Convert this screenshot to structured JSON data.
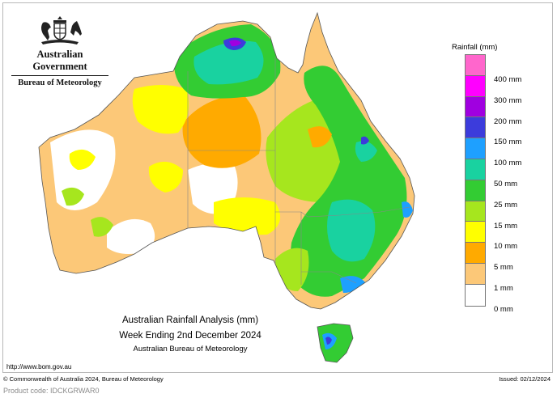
{
  "header": {
    "government": "Australian Government",
    "bureau": "Bureau of Meteorology"
  },
  "legend": {
    "title": "Rainfall (mm)",
    "items": [
      {
        "label": "400 mm",
        "color": "#ff66cc"
      },
      {
        "label": "300 mm",
        "color": "#ff00ff"
      },
      {
        "label": "200 mm",
        "color": "#a000e0"
      },
      {
        "label": "150 mm",
        "color": "#3c3cdc"
      },
      {
        "label": "100 mm",
        "color": "#1ea0ff"
      },
      {
        "label": "50 mm",
        "color": "#19d2a0"
      },
      {
        "label": "25 mm",
        "color": "#33cc33"
      },
      {
        "label": "15 mm",
        "color": "#a6e61e"
      },
      {
        "label": "10 mm",
        "color": "#ffff00"
      },
      {
        "label": "5 mm",
        "color": "#ffaa00"
      },
      {
        "label": "1 mm",
        "color": "#fcc878"
      },
      {
        "label": "0 mm",
        "color": "#ffffff"
      }
    ]
  },
  "title": {
    "line1": "Australian Rainfall Analysis (mm)",
    "line2": "Week Ending 2nd December 2024",
    "line3": "Australian Bureau of Meteorology"
  },
  "footer": {
    "url": "http://www.bom.gov.au",
    "copyright": "© Commonwealth of Australia 2024, Bureau of Meteorology",
    "issued": "Issued: 02/12/2024",
    "product_code": "Product code: IDCKGRWAR0"
  }
}
